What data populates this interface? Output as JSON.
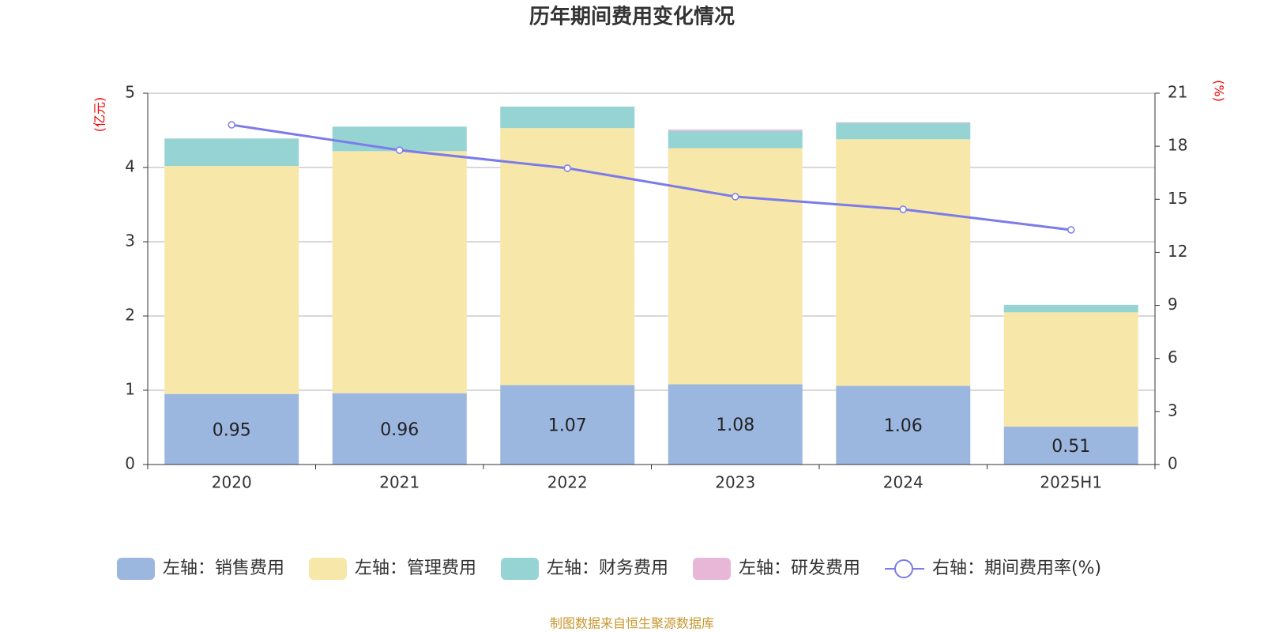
{
  "chart_data": {
    "type": "bar",
    "title": "历年期间费用变化情况",
    "y_label": "(亿元)",
    "y2_label": "(%)",
    "source": "制图数据来自恒生聚源数据库",
    "categories": [
      "2020",
      "2021",
      "2022",
      "2023",
      "2024",
      "2025H1"
    ],
    "ylim": [
      0,
      5
    ],
    "yticks": [
      0,
      1,
      2,
      3,
      4,
      5
    ],
    "y2lim": [
      0,
      21
    ],
    "y2ticks": [
      0,
      3,
      6,
      9,
      12,
      15,
      18,
      21
    ],
    "grid": true,
    "stacked": true,
    "legend": "bottom",
    "series": [
      {
        "name": "左轴：销售费用",
        "color": "#9bb7e0",
        "values": [
          0.95,
          0.96,
          1.07,
          1.08,
          1.06,
          0.51
        ],
        "show_labels": true
      },
      {
        "name": "左轴：管理费用",
        "color": "#f7e7a9",
        "values": [
          3.07,
          3.26,
          3.46,
          3.18,
          3.32,
          1.54
        ]
      },
      {
        "name": "左轴：财务费用",
        "color": "#96d3d3",
        "values": [
          0.37,
          0.33,
          0.29,
          0.23,
          0.22,
          0.1
        ]
      },
      {
        "name": "左轴：研发费用",
        "color": "#e8b7d8",
        "values": [
          0,
          0,
          0,
          0.02,
          0.01,
          0
        ]
      },
      {
        "name": "右轴：期间费用率(%)",
        "color": "#7b7bea",
        "type": "line",
        "axis": "y2",
        "values": [
          19.21,
          17.78,
          16.76,
          15.15,
          14.43,
          13.27
        ]
      }
    ]
  }
}
